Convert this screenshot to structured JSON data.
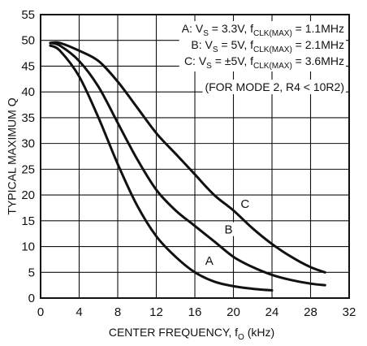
{
  "chart_data": {
    "type": "line",
    "xlabel": {
      "main": "CENTER FREQUENCY, f",
      "sub": "O",
      "tail": " (kHz)"
    },
    "ylabel": "TYPICAL MAXIMUM Q",
    "xlim": [
      0,
      32
    ],
    "ylim": [
      0,
      55
    ],
    "xticks": [
      0,
      4,
      8,
      12,
      16,
      20,
      24,
      28,
      32
    ],
    "yticks": [
      0,
      5,
      10,
      15,
      20,
      25,
      30,
      35,
      40,
      45,
      50,
      55
    ],
    "grid": true,
    "legend": [
      {
        "key": "A",
        "parts": [
          [
            "A: V",
            ""
          ],
          [
            "S",
            "sub"
          ],
          [
            " = 3.3V, f",
            ""
          ],
          [
            "CLK(MAX)",
            "sub"
          ],
          [
            " = 1.1MHz",
            ""
          ]
        ]
      },
      {
        "key": "B",
        "parts": [
          [
            "B: V",
            ""
          ],
          [
            "S",
            "sub"
          ],
          [
            " = 5V, f",
            ""
          ],
          [
            "CLK(MAX)",
            "sub"
          ],
          [
            " = 2.1MHz",
            ""
          ]
        ]
      },
      {
        "key": "C",
        "parts": [
          [
            "C: V",
            ""
          ],
          [
            "S",
            "sub"
          ],
          [
            " = ±5V, f",
            ""
          ],
          [
            "CLK(MAX)",
            "sub"
          ],
          [
            " = 3.6MHz",
            ""
          ]
        ]
      }
    ],
    "note": "(FOR MODE 2, R4 < 10R2)",
    "series": [
      {
        "name": "A",
        "x": [
          1,
          2,
          4,
          6,
          8,
          10,
          12,
          14,
          16,
          18,
          20,
          22,
          24
        ],
        "y": [
          49,
          48,
          43,
          35,
          26,
          18,
          12,
          8,
          5,
          3.2,
          2.3,
          1.8,
          1.5
        ]
      },
      {
        "name": "B",
        "x": [
          1,
          2,
          4,
          6,
          8,
          10,
          12,
          14,
          16,
          18,
          20,
          22,
          24,
          26,
          28,
          29.5
        ],
        "y": [
          49.5,
          49,
          46,
          41,
          34,
          27,
          21,
          17,
          14,
          11,
          8,
          6,
          4.5,
          3.5,
          2.8,
          2.5
        ]
      },
      {
        "name": "C",
        "x": [
          1,
          2,
          4,
          6,
          8,
          10,
          12,
          14,
          16,
          18,
          20,
          22,
          24,
          26,
          28,
          29.5
        ],
        "y": [
          49.5,
          49.5,
          48,
          46,
          42,
          37,
          32,
          28,
          24,
          20,
          17,
          13.5,
          10.5,
          8,
          6,
          5
        ]
      }
    ],
    "curve_labels": [
      {
        "text": "A",
        "x": 17.5,
        "y": 6.5
      },
      {
        "text": "B",
        "x": 19.5,
        "y": 12.5
      },
      {
        "text": "C",
        "x": 21.2,
        "y": 17.5
      }
    ]
  }
}
